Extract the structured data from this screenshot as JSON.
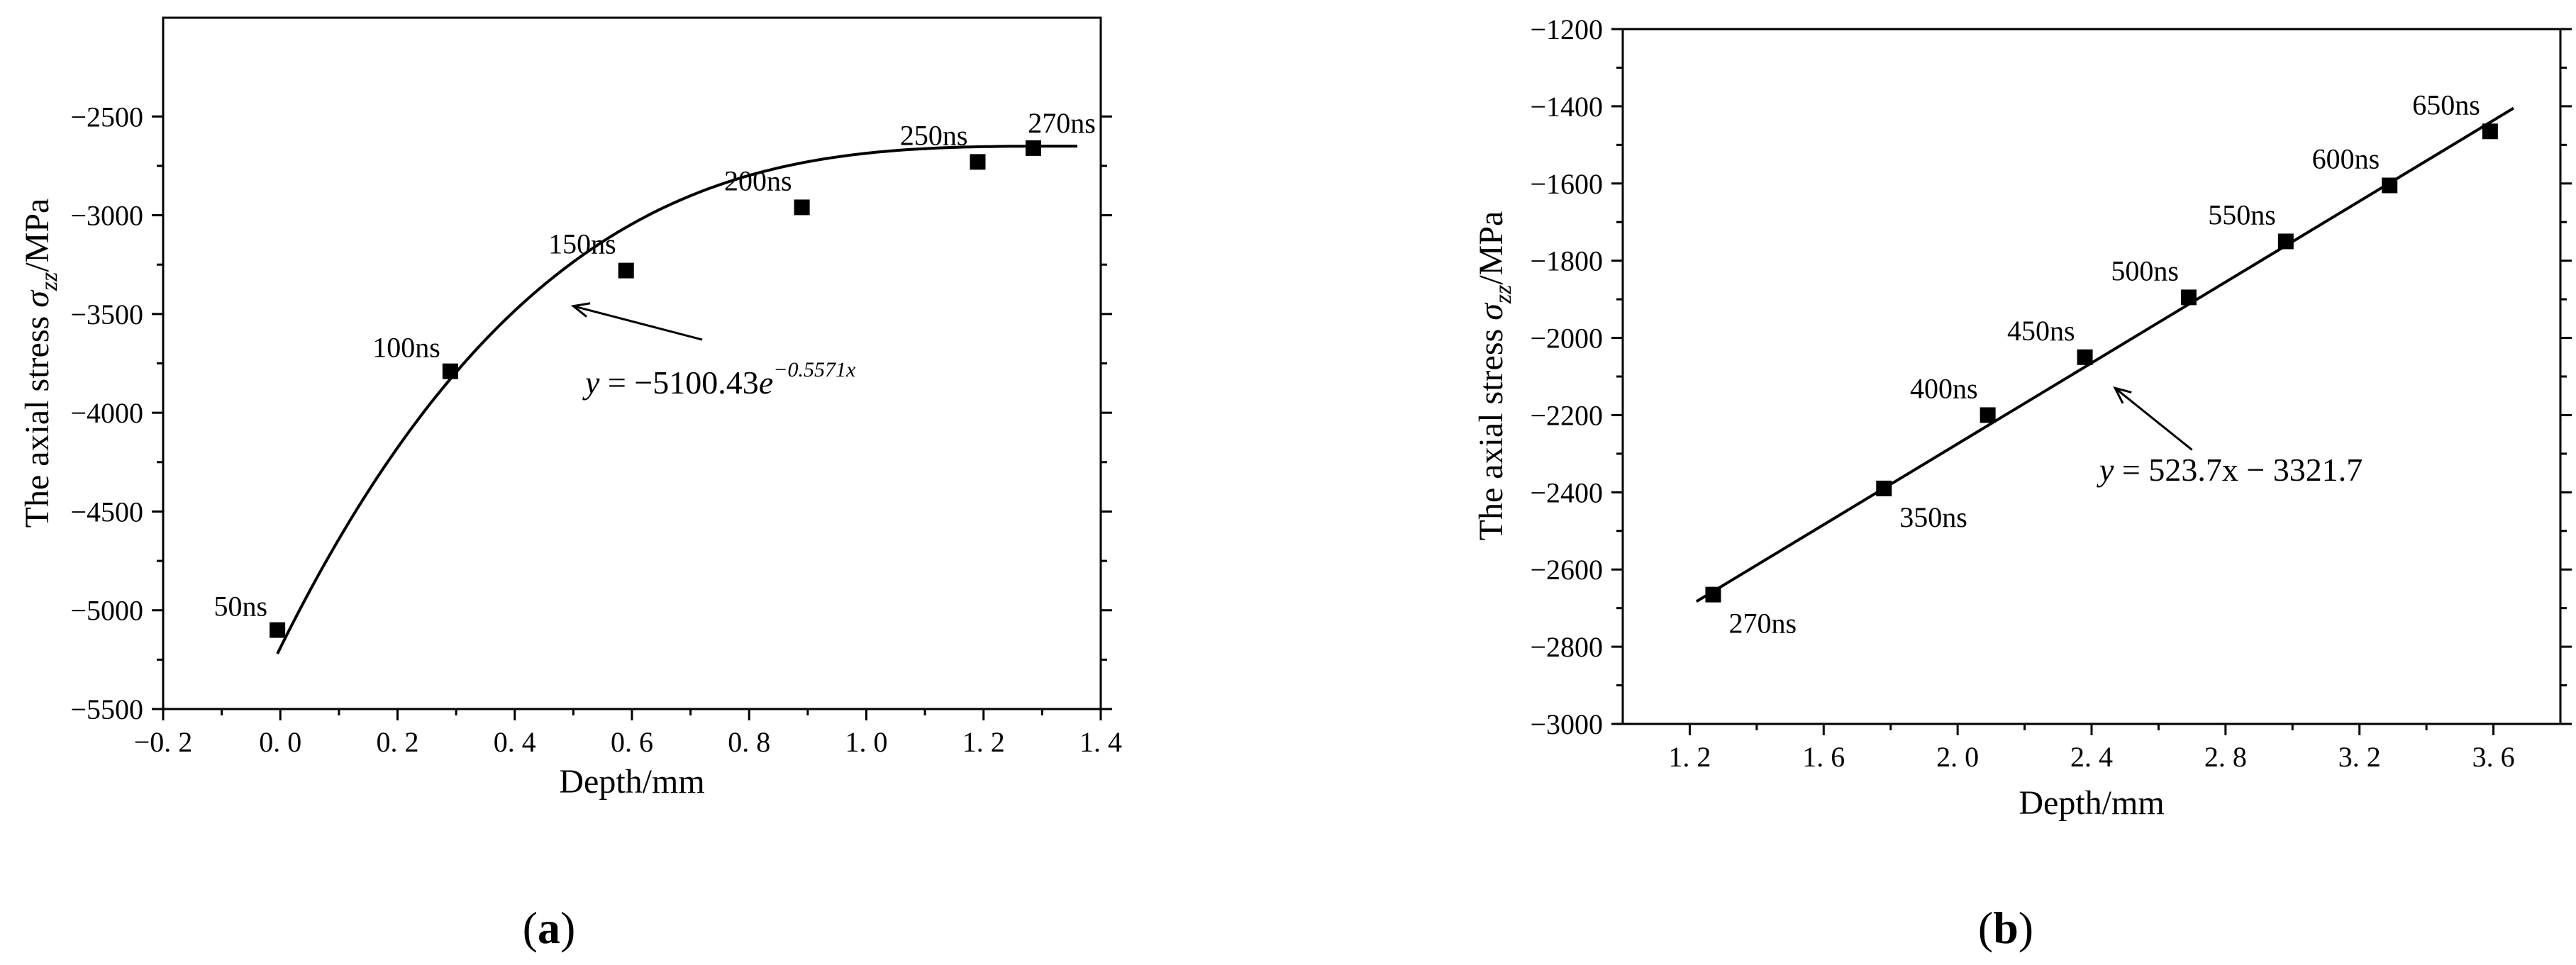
{
  "chart_data": [
    {
      "id": "a",
      "type": "scatter",
      "panel_label": "a",
      "xlabel": "Depth/mm",
      "ylabel_prefix": "The axial stress ",
      "ylabel_symbol": "σ",
      "ylabel_subscript": "zz",
      "ylabel_suffix": "/MPa",
      "xlim": [
        -0.2,
        1.4
      ],
      "ylim": [
        -5500,
        -2000
      ],
      "xticks": [
        -0.2,
        0.0,
        0.2,
        0.4,
        0.6,
        0.8,
        1.0,
        1.2,
        1.4
      ],
      "xtick_labels": [
        "−0. 2",
        "0. 0",
        "0. 2",
        "0. 4",
        "0. 6",
        "0. 8",
        "1. 0",
        "1. 2",
        "1. 4"
      ],
      "yticks": [
        -5500,
        -5000,
        -4500,
        -4000,
        -3500,
        -3000,
        -2500
      ],
      "ytick_labels": [
        "−5500",
        "−5000",
        "−4500",
        "−4000",
        "−3500",
        "−3000",
        "−2500"
      ],
      "points": [
        {
          "x": -0.005,
          "y": -5100,
          "label": "50ns",
          "label_pos": "left"
        },
        {
          "x": 0.29,
          "y": -3790,
          "label": "100ns",
          "label_pos": "left"
        },
        {
          "x": 0.59,
          "y": -3280,
          "label": "150ns",
          "label_pos": "left-above"
        },
        {
          "x": 0.89,
          "y": -2960,
          "label": "200ns",
          "label_pos": "left-above"
        },
        {
          "x": 1.19,
          "y": -2730,
          "label": "250ns",
          "label_pos": "left-above"
        },
        {
          "x": 1.285,
          "y": -2660,
          "label": "270ns",
          "label_pos": "above"
        }
      ],
      "fit": {
        "kind": "exponential",
        "x_range": [
          -0.005,
          1.36
        ]
      },
      "equation": {
        "lhs": "y",
        "eq": " = −5100.43",
        "base": "e",
        "exponent": "−0.5571x"
      },
      "arrow": {
        "from": [
          0.72,
          -3630
        ],
        "to": [
          0.5,
          -3460
        ]
      }
    },
    {
      "id": "b",
      "type": "scatter",
      "panel_label": "b",
      "xlabel": "Depth/mm",
      "ylabel_prefix": "The axial stress ",
      "ylabel_symbol": "σ",
      "ylabel_subscript": "zz",
      "ylabel_suffix": "/MPa",
      "xlim": [
        1.0,
        3.8
      ],
      "ylim": [
        -3000,
        -1200
      ],
      "xticks": [
        1.2,
        1.6,
        2.0,
        2.4,
        2.8,
        3.2,
        3.6
      ],
      "xtick_labels": [
        "1. 2",
        "1. 6",
        "2. 0",
        "2. 4",
        "2. 8",
        "3. 2",
        "3. 6"
      ],
      "yticks": [
        -3000,
        -2800,
        -2600,
        -2400,
        -2200,
        -2000,
        -1800,
        -1600,
        -1400,
        -1200
      ],
      "ytick_labels": [
        "−3000",
        "−2800",
        "−2600",
        "−2400",
        "−2200",
        "−2000",
        "−1800",
        "−1600",
        "−1400",
        "−1200"
      ],
      "points": [
        {
          "x": 1.27,
          "y": -2665,
          "label": "270ns",
          "label_pos": "below-right"
        },
        {
          "x": 1.78,
          "y": -2390,
          "label": "350ns",
          "label_pos": "below-right"
        },
        {
          "x": 2.09,
          "y": -2200,
          "label": "400ns",
          "label_pos": "left-above"
        },
        {
          "x": 2.38,
          "y": -2050,
          "label": "450ns",
          "label_pos": "left-above"
        },
        {
          "x": 2.69,
          "y": -1895,
          "label": "500ns",
          "label_pos": "left-above"
        },
        {
          "x": 2.98,
          "y": -1750,
          "label": "550ns",
          "label_pos": "left-above"
        },
        {
          "x": 3.29,
          "y": -1605,
          "label": "600ns",
          "label_pos": "left-above"
        },
        {
          "x": 3.59,
          "y": -1465,
          "label": "650ns",
          "label_pos": "left-above"
        }
      ],
      "fit": {
        "kind": "linear",
        "x_range": [
          1.22,
          3.66
        ]
      },
      "equation": {
        "lhs": "y",
        "eq": " = 523.7x − 3321.7",
        "base": "",
        "exponent": ""
      },
      "arrow": {
        "from": [
          2.7,
          -2290
        ],
        "to": [
          2.47,
          -2130
        ]
      }
    }
  ]
}
